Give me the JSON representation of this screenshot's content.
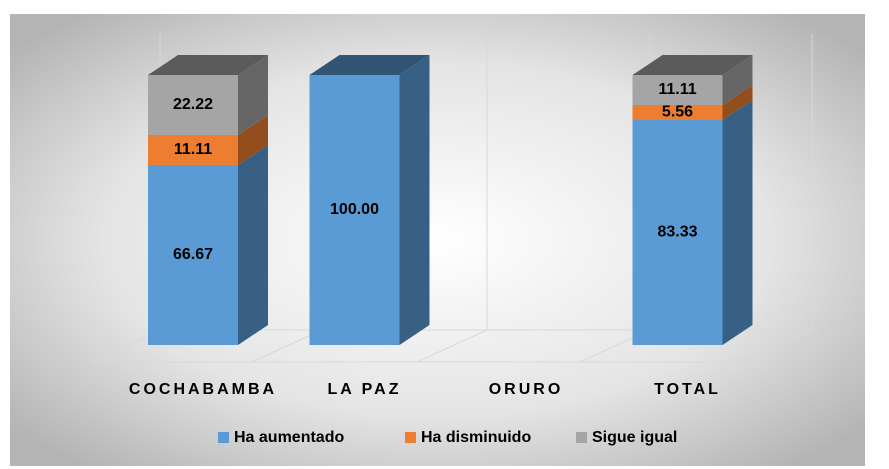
{
  "chart_data": {
    "type": "bar3d_stacked",
    "categories": [
      "COCHABAMBA",
      "LA PAZ",
      "ORURO",
      "TOTAL"
    ],
    "series": [
      {
        "name": "Ha aumentado",
        "color": "#5b9bd5",
        "values": [
          66.67,
          100,
          null,
          83.33
        ],
        "value_labels": [
          "66.67",
          "100.00",
          null,
          "83.33"
        ]
      },
      {
        "name": "Ha disminuido",
        "color": "#ed7d31",
        "values": [
          11.11,
          null,
          null,
          5.56
        ],
        "value_labels": [
          "11.11",
          null,
          null,
          "5.56"
        ]
      },
      {
        "name": "Sigue igual",
        "color": "#a5a5a5",
        "values": [
          22.22,
          null,
          null,
          11.11
        ],
        "value_labels": [
          "22.22",
          null,
          null,
          "11.11"
        ]
      }
    ],
    "legend": "bottom"
  }
}
